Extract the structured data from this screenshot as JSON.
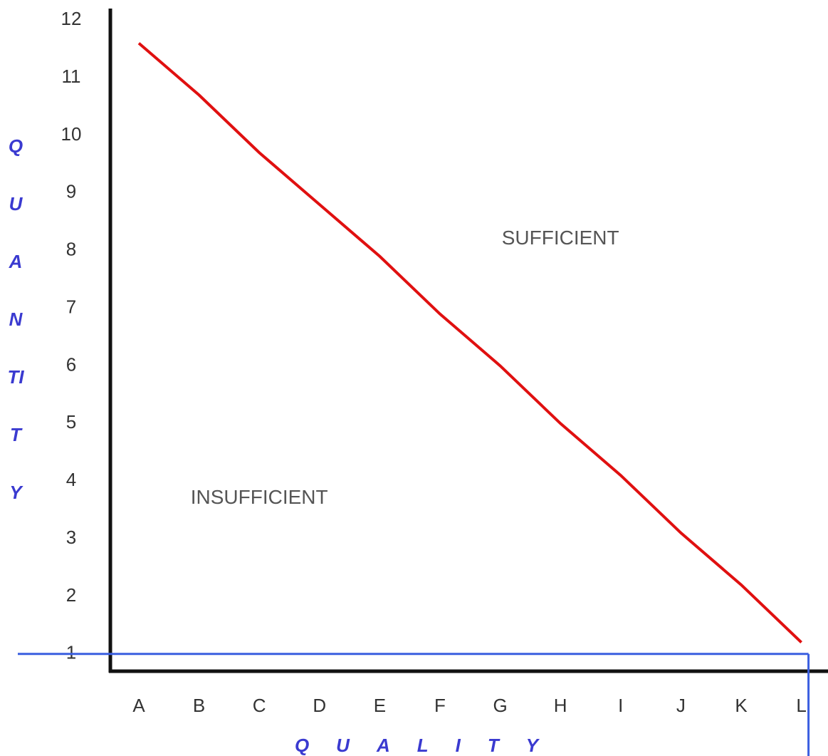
{
  "chart_data": {
    "type": "line",
    "x_label": "QUALITY",
    "y_label": "QUANTITY",
    "categories": [
      "A",
      "B",
      "C",
      "D",
      "E",
      "F",
      "G",
      "H",
      "I",
      "J",
      "K",
      "L"
    ],
    "series": [
      {
        "color": "#e01010",
        "values": [
          11.6,
          10.7,
          9.7,
          8.8,
          7.9,
          6.9,
          6.0,
          5.0,
          4.1,
          3.1,
          2.2,
          1.2
        ]
      }
    ],
    "ylim": [
      0.7,
      12.3
    ],
    "yticks": [
      1,
      2,
      3,
      4,
      5,
      6,
      7,
      8,
      9,
      10,
      11,
      12
    ],
    "reference_lines": {
      "y": 1,
      "x": "L",
      "color": "#3a5fe0"
    },
    "annotations": [
      {
        "text": "SUFFICIENT",
        "x": "H",
        "y": 8.2
      },
      {
        "text": "INSUFFICIENT",
        "x": "C",
        "y": 3.7
      }
    ]
  }
}
